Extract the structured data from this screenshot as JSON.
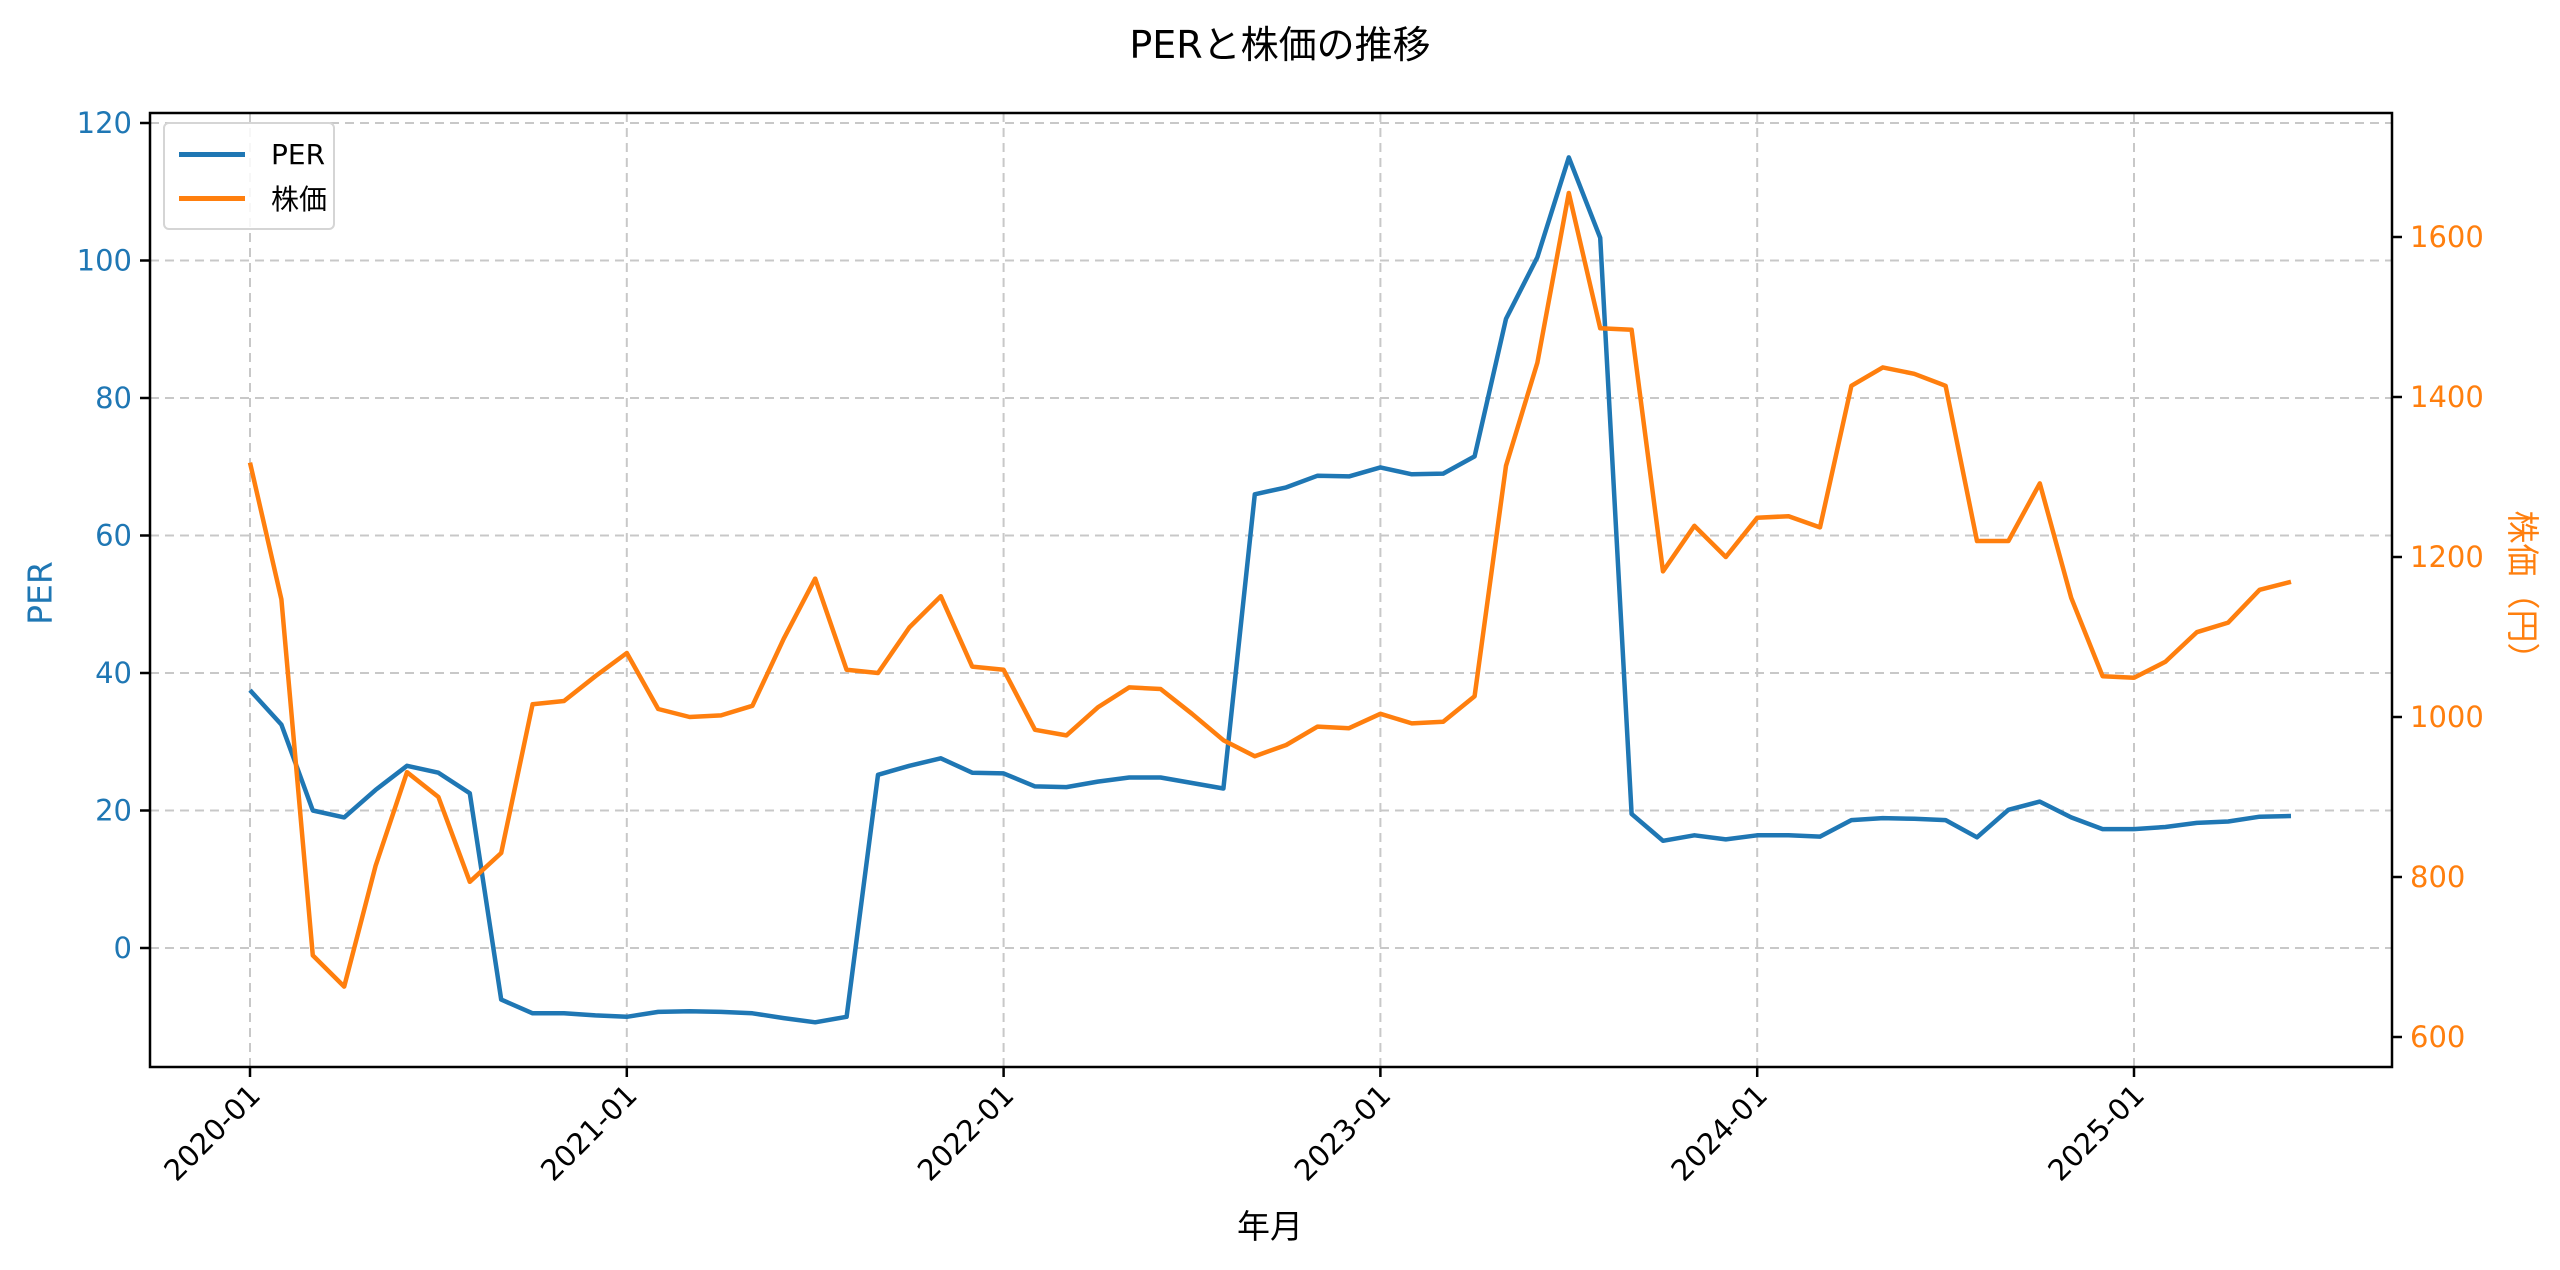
{
  "chart_data": {
    "type": "line",
    "title": "PERと株価の推移",
    "xlabel": "年月",
    "ylabel": "PER",
    "ylabel_right": "株価（円）",
    "x_ticks": [
      "2020-01",
      "2021-01",
      "2022-01",
      "2023-01",
      "2024-01",
      "2025-01"
    ],
    "y_ticks_left": [
      0,
      20,
      40,
      60,
      80,
      100,
      120
    ],
    "y_ticks_right": [
      600,
      800,
      1000,
      1200,
      1400,
      1600
    ],
    "ylim_left": [
      -17,
      122
    ],
    "ylim_right": [
      570,
      1750
    ],
    "grid": true,
    "legend_position": "upper left",
    "x": [
      "2020-01",
      "2020-02",
      "2020-03",
      "2020-04",
      "2020-05",
      "2020-06",
      "2020-07",
      "2020-08",
      "2020-09",
      "2020-10",
      "2020-11",
      "2020-12",
      "2021-01",
      "2021-02",
      "2021-03",
      "2021-04",
      "2021-05",
      "2021-06",
      "2021-07",
      "2021-08",
      "2021-09",
      "2021-10",
      "2021-11",
      "2021-12",
      "2022-01",
      "2022-02",
      "2022-03",
      "2022-04",
      "2022-05",
      "2022-06",
      "2022-07",
      "2022-08",
      "2022-09",
      "2022-10",
      "2022-11",
      "2022-12",
      "2023-01",
      "2023-02",
      "2023-03",
      "2023-04",
      "2023-05",
      "2023-06",
      "2023-07",
      "2023-08",
      "2023-09",
      "2023-10",
      "2023-11",
      "2023-12",
      "2024-01",
      "2024-02",
      "2024-03",
      "2024-04",
      "2024-05",
      "2024-06",
      "2024-07",
      "2024-08",
      "2024-09",
      "2024-10",
      "2024-11",
      "2024-12",
      "2025-01",
      "2025-02",
      "2025-03",
      "2025-04",
      "2025-05",
      "2025-06"
    ],
    "series": [
      {
        "name": "PER",
        "axis": "left",
        "color": "#1f77b4",
        "values": [
          37.5,
          32.5,
          20.0,
          19.0,
          23.0,
          26.5,
          25.5,
          22.5,
          -7.5,
          -9.5,
          -9.5,
          -9.8,
          -10.0,
          -9.3,
          -9.2,
          -9.3,
          -9.5,
          -10.2,
          -10.8,
          -10.0,
          25.2,
          26.5,
          27.6,
          25.5,
          25.4,
          23.5,
          23.4,
          24.2,
          24.8,
          24.8,
          24.0,
          23.2,
          66.0,
          67.0,
          68.7,
          68.6,
          69.9,
          68.9,
          69.0,
          71.5,
          91.5,
          100.5,
          115.0,
          103.3,
          19.5,
          15.6,
          16.4,
          15.8,
          16.4,
          16.4,
          16.2,
          18.6,
          18.9,
          18.8,
          18.6,
          16.1,
          20.1,
          21.3,
          19.0,
          17.3,
          17.3,
          17.6,
          18.2,
          18.4,
          19.1,
          19.2
        ]
      },
      {
        "name": "株価",
        "axis": "right",
        "color": "#ff7f0e",
        "values": [
          1318,
          1147,
          702,
          663,
          814,
          931,
          900,
          794,
          830,
          1016,
          1020,
          1051,
          1080,
          1010,
          1000,
          1002,
          1014,
          1098,
          1173,
          1059,
          1055,
          1112,
          1151,
          1063,
          1059,
          984,
          977,
          1012,
          1037,
          1035,
          1004,
          971,
          951,
          965,
          988,
          986,
          1004,
          992,
          994,
          1026,
          1314,
          1443,
          1655,
          1486,
          1484,
          1182,
          1239,
          1200,
          1249,
          1251,
          1237,
          1414,
          1437,
          1429,
          1414,
          1220,
          1220,
          1292,
          1149,
          1051,
          1049,
          1069,
          1106,
          1118,
          1159,
          1169
        ]
      }
    ]
  },
  "legend": {
    "items": [
      {
        "label": "PER",
        "color": "#1f77b4"
      },
      {
        "label": "株価",
        "color": "#ff7f0e"
      }
    ]
  }
}
